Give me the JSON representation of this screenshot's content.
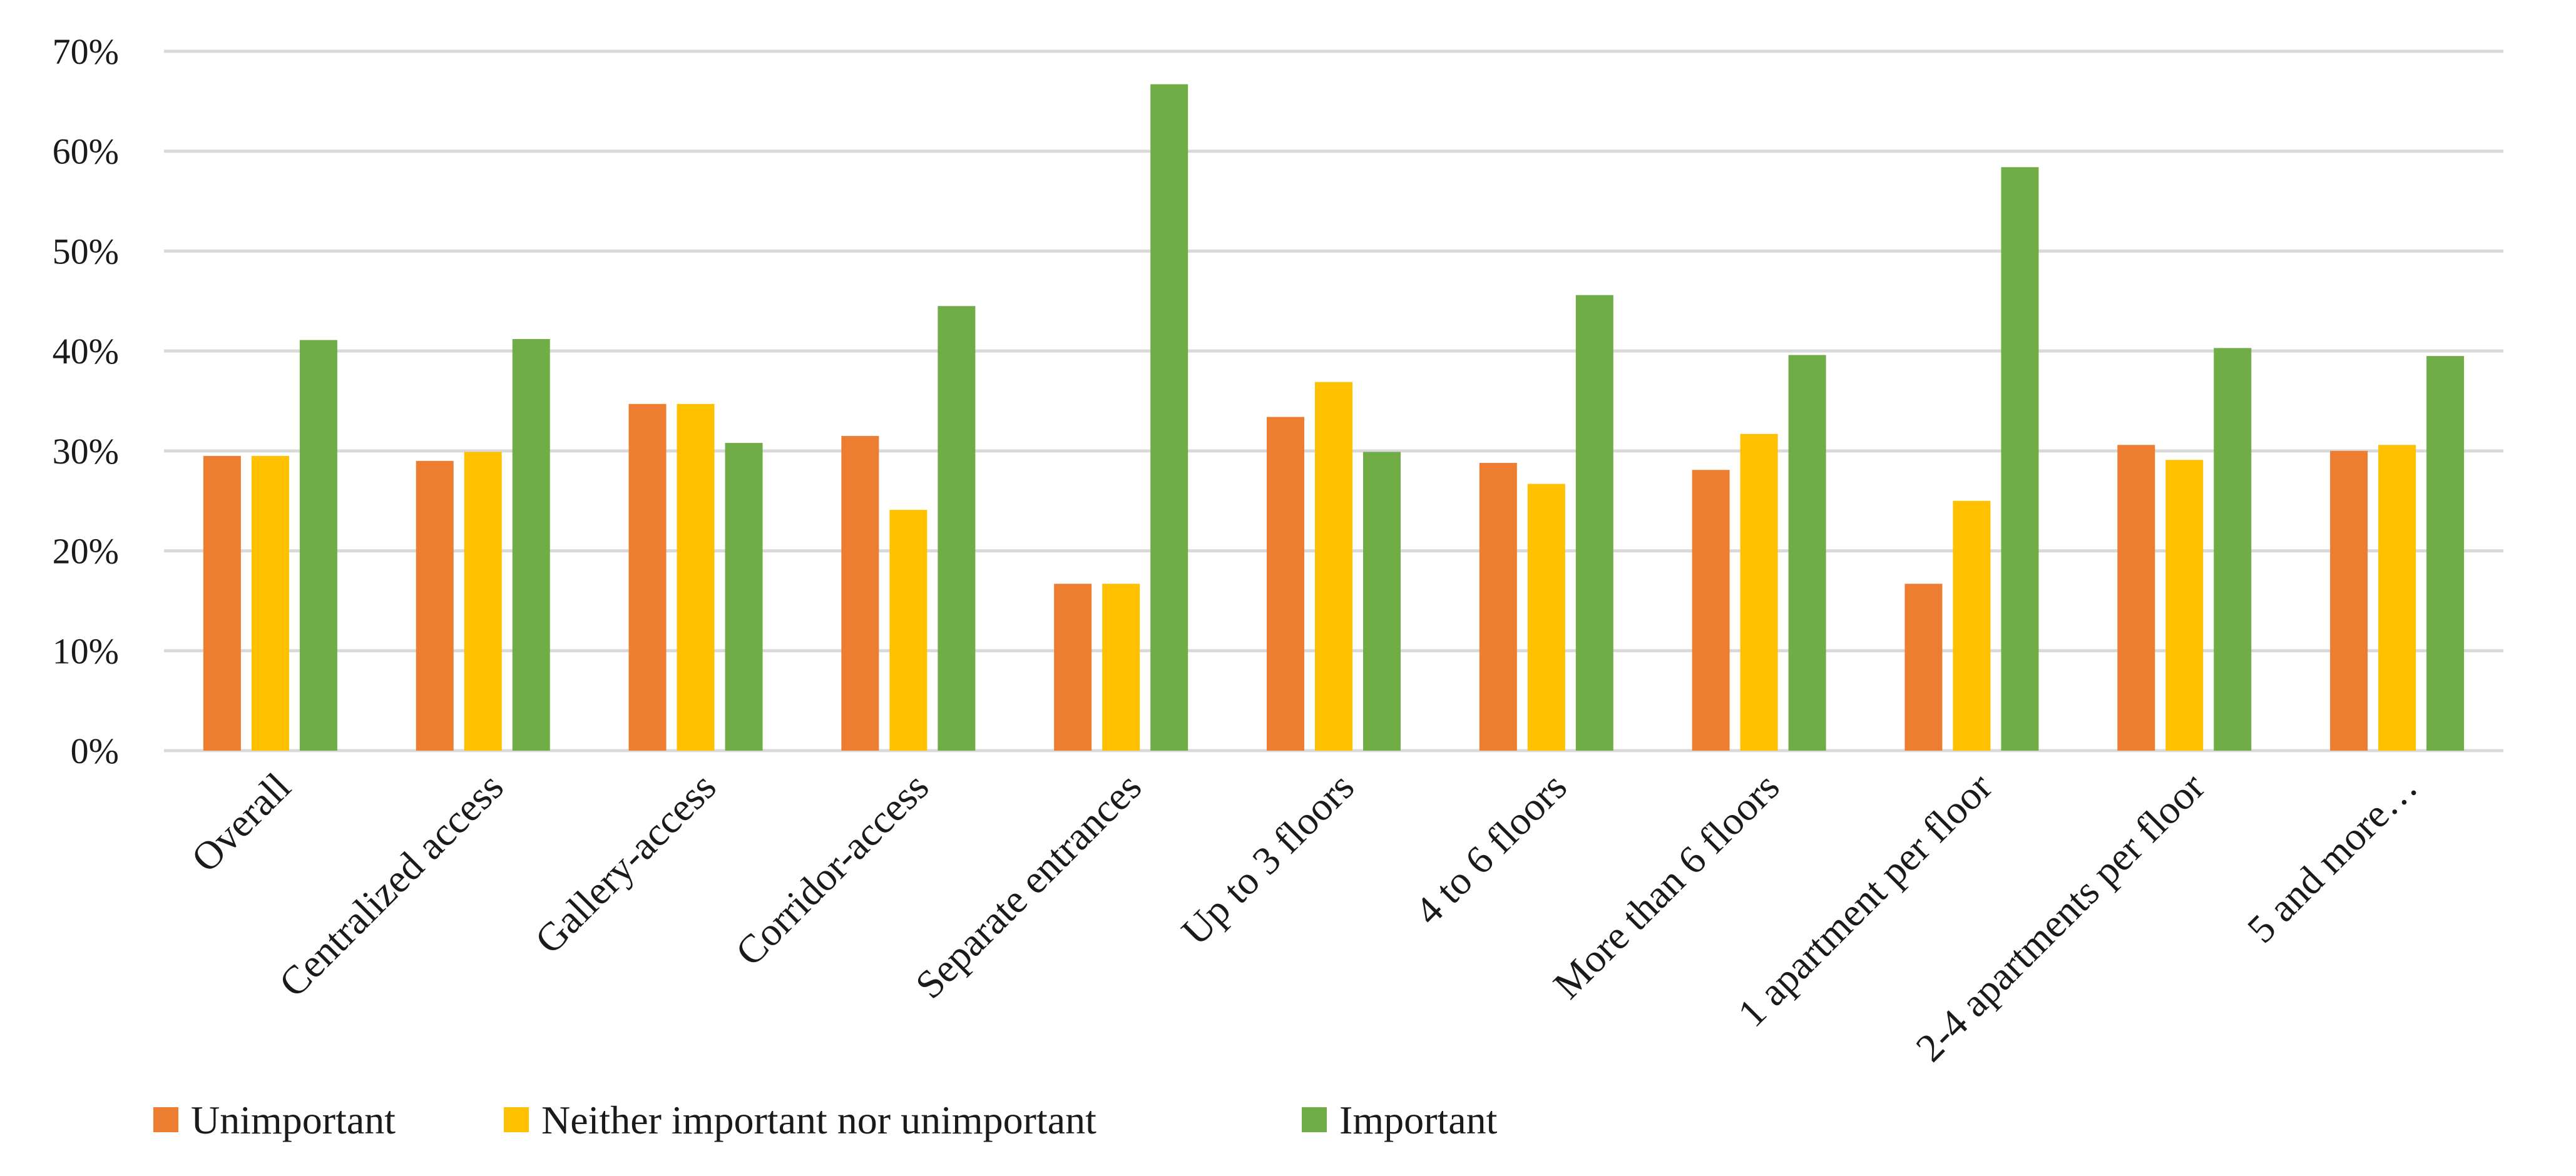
{
  "chart_data": {
    "type": "bar",
    "title": "",
    "xlabel": "",
    "ylabel": "",
    "ylim": [
      0,
      70
    ],
    "y_ticks": [
      "0%",
      "10%",
      "20%",
      "30%",
      "40%",
      "50%",
      "60%",
      "70%"
    ],
    "grid": true,
    "legend_position": "bottom",
    "categories": [
      "Overall",
      "Centralized access",
      "Gallery-access",
      "Corridor-access",
      "Separate entrances",
      "Up to 3 floors",
      "4 to 6 floors",
      "More than 6 floors",
      "1 apartment per floor",
      "2-4 apartments per floor",
      "5 and more…"
    ],
    "series": [
      {
        "name": "Unimportant",
        "color": "#ED7D31",
        "values": [
          29.5,
          29.0,
          34.7,
          31.5,
          16.7,
          33.4,
          28.8,
          28.1,
          16.7,
          30.6,
          30.0
        ]
      },
      {
        "name": "Neither important nor unimportant",
        "color": "#FFC000",
        "values": [
          29.5,
          29.9,
          34.7,
          24.1,
          16.7,
          36.9,
          26.7,
          31.7,
          25.0,
          29.1,
          30.6
        ]
      },
      {
        "name": "Important",
        "color": "#70AD47",
        "values": [
          41.1,
          41.2,
          30.8,
          44.5,
          66.7,
          29.9,
          45.6,
          39.6,
          58.4,
          40.3,
          39.5
        ]
      }
    ]
  }
}
